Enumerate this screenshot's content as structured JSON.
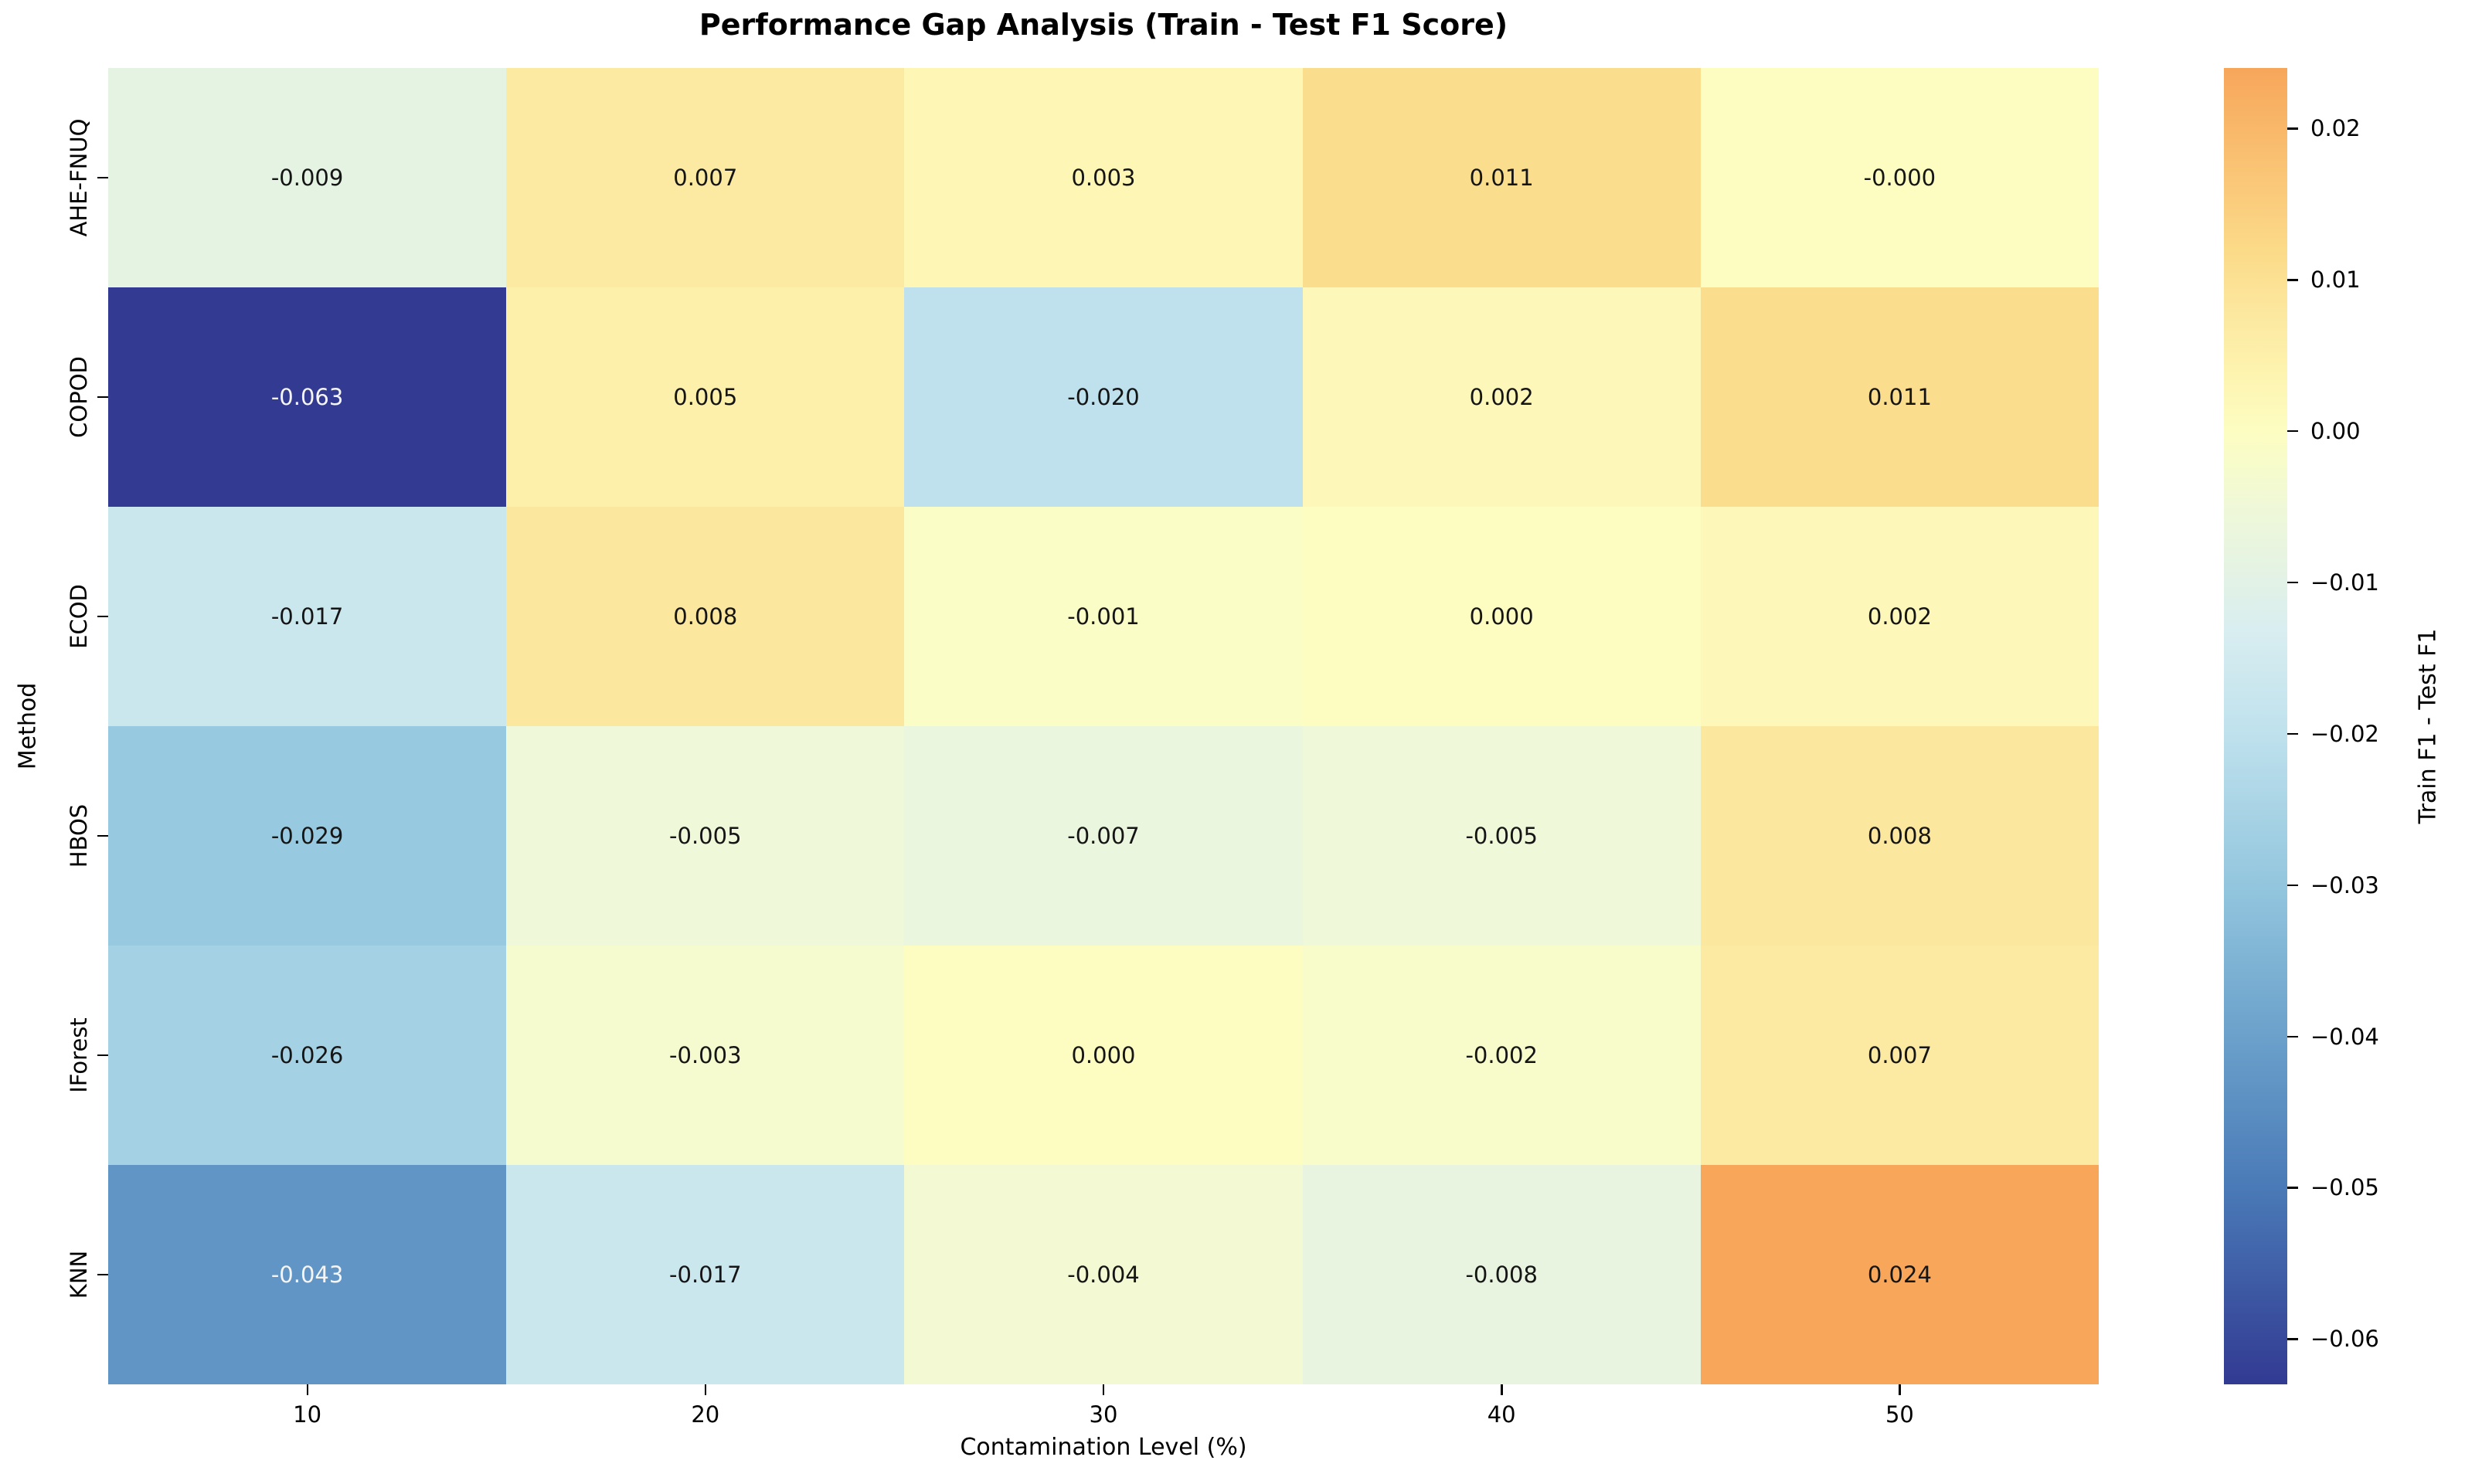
{
  "chart_data": {
    "type": "heatmap",
    "title": "Performance Gap Analysis (Train - Test F1 Score)",
    "xlabel": "Contamination Level (%)",
    "ylabel": "Method",
    "colorbar_label": "Train F1 - Test F1",
    "x_categories": [
      "10",
      "20",
      "30",
      "40",
      "50"
    ],
    "y_categories": [
      "AHE-FNUQ",
      "COPOD",
      "ECOD",
      "HBOS",
      "IForest",
      "KNN"
    ],
    "values": [
      [
        -0.009,
        0.007,
        0.003,
        0.011,
        -0.0
      ],
      [
        -0.063,
        0.005,
        -0.02,
        0.002,
        0.011
      ],
      [
        -0.017,
        0.008,
        -0.001,
        0.0,
        0.002
      ],
      [
        -0.029,
        -0.005,
        -0.007,
        -0.005,
        0.008
      ],
      [
        -0.026,
        -0.003,
        0.0,
        -0.002,
        0.007
      ],
      [
        -0.043,
        -0.017,
        -0.004,
        -0.008,
        0.024
      ]
    ],
    "cell_labels": [
      [
        "-0.009",
        "0.007",
        "0.003",
        "0.011",
        "-0.000"
      ],
      [
        "-0.063",
        "0.005",
        "-0.020",
        "0.002",
        "0.011"
      ],
      [
        "-0.017",
        "0.008",
        "-0.001",
        "0.000",
        "0.002"
      ],
      [
        "-0.029",
        "-0.005",
        "-0.007",
        "-0.005",
        "0.008"
      ],
      [
        "-0.026",
        "-0.003",
        "0.000",
        "-0.002",
        "0.007"
      ],
      [
        "-0.043",
        "-0.017",
        "-0.004",
        "-0.008",
        "0.024"
      ]
    ],
    "vmin": -0.063,
    "vmax": 0.024,
    "colorbar_ticks": [
      0.02,
      0.01,
      0.0,
      -0.01,
      -0.02,
      -0.03,
      -0.04,
      -0.05,
      -0.06
    ],
    "colorbar_tick_labels": [
      "0.02",
      "0.01",
      "0.00",
      "−0.01",
      "−0.02",
      "−0.03",
      "−0.04",
      "−0.05",
      "−0.06"
    ],
    "legend_position": "right",
    "grid": false,
    "colors": {
      "background": "#ffffff",
      "annotation_dark_text": "#151515",
      "annotation_light_text": "#f5f5f5",
      "light_text_threshold": -0.038,
      "colormap_anchors": [
        {
          "v": -0.063,
          "c": "#323a92"
        },
        {
          "v": -0.05,
          "c": "#4a7ab7"
        },
        {
          "v": -0.04,
          "c": "#6ba1cb"
        },
        {
          "v": -0.03,
          "c": "#93c6de"
        },
        {
          "v": -0.02,
          "c": "#bfe1ed"
        },
        {
          "v": -0.013,
          "c": "#d9eef0"
        },
        {
          "v": -0.009,
          "c": "#e5f3e3"
        },
        {
          "v": -0.005,
          "c": "#eff8d8"
        },
        {
          "v": -0.002,
          "c": "#f8fcca"
        },
        {
          "v": 0.0,
          "c": "#fdfdc2"
        },
        {
          "v": 0.004,
          "c": "#fdf3af"
        },
        {
          "v": 0.008,
          "c": "#fce79e"
        },
        {
          "v": 0.012,
          "c": "#fbda88"
        },
        {
          "v": 0.017,
          "c": "#fac576"
        },
        {
          "v": 0.024,
          "c": "#f7a65a"
        }
      ]
    }
  }
}
